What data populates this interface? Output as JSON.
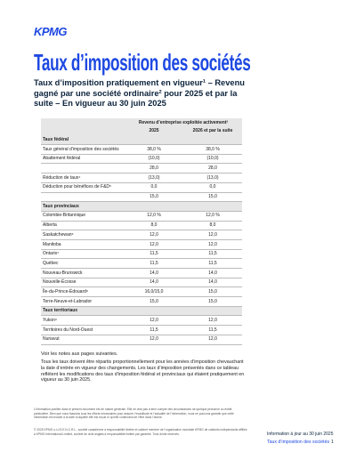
{
  "header": {
    "logo": "KPMG",
    "title": "Taux d’imposition des sociétés",
    "subtitle": "Taux d’imposition pratiquement en vigueur¹ – Revenu gagné par une société ordinaire² pour 2025 et par la suite – En vigueur au 30 juin 2025"
  },
  "table": {
    "group_header": "Revenu d’entreprise exploitée activement³",
    "columns": [
      "2025",
      "2026 et par la suite"
    ],
    "sections": [
      {
        "title": "Taux fédéral",
        "rows": [
          {
            "label": "Taux général d’imposition des sociétés",
            "values": [
              "38,0 %",
              "38,0 %"
            ]
          },
          {
            "label": "Abattement fédéral",
            "values": [
              "(10,0)",
              "(10,0)"
            ]
          },
          {
            "values": [
              "28,0",
              "28,0"
            ]
          },
          {
            "label": "Réduction de taux⁴",
            "values": [
              "(13,0)",
              "(13,0)"
            ]
          },
          {
            "label": "Déduction pour bénéfices de F&D⁵",
            "values": [
              "0,0",
              "0,0"
            ]
          },
          {
            "values": [
              "15,0",
              "15,0"
            ]
          }
        ]
      },
      {
        "title": "Taux provinciaux",
        "rows": [
          {
            "label": "Colombie-Britannique",
            "values": [
              "12,0 %",
              "12,0 %"
            ]
          },
          {
            "label": "Alberta",
            "values": [
              "8,0",
              "8,0"
            ]
          },
          {
            "label": "Saskatchewan⁶",
            "values": [
              "12,0",
              "12,0"
            ]
          },
          {
            "label": "Manitoba",
            "values": [
              "12,0",
              "12,0"
            ]
          },
          {
            "label": "Ontario⁷",
            "values": [
              "11,5",
              "11,5"
            ]
          },
          {
            "label": "Québec",
            "values": [
              "11,5",
              "11,5"
            ]
          },
          {
            "label": "Nouveau-Brunswick",
            "values": [
              "14,0",
              "14,0"
            ]
          },
          {
            "label": "Nouvelle-Écosse",
            "values": [
              "14,0",
              "14,0"
            ]
          },
          {
            "label": "Île-du-Prince-Édouard⁸",
            "values": [
              "16,0/15,0",
              "15,0"
            ]
          },
          {
            "label": "Terre-Neuve-et-Labrador",
            "values": [
              "15,0",
              "15,0"
            ]
          }
        ]
      },
      {
        "title": "Taux territoriaux",
        "rows": [
          {
            "label": "Yukon⁹",
            "values": [
              "12,0",
              "12,0"
            ]
          },
          {
            "label": "Territoires du Nord-Ouest",
            "values": [
              "11,5",
              "11,5"
            ]
          },
          {
            "label": "Nunavut",
            "values": [
              "12,0",
              "12,0"
            ]
          }
        ]
      }
    ]
  },
  "notes": {
    "see_notes": "Voir les notes aux pages suivantes.",
    "paragraph": "Tous les taux doivent être répartis proportionnellement pour les années d’imposition chevauchant la date d’entrée en vigueur des changements. Les taux d’imposition présentés dans ce tableau reflètent les modifications des taux d’imposition fédéral et provinciaux qui étaient pratiquement en vigueur au 30 juin 2025."
  },
  "footer": {
    "disclaimer": "L’information publiée dans le présent document est de nature générale. Elle ne vise pas à tenir compte des circonstances de quelque personne ou entité particulière. Bien que nous fassions tous les efforts nécessaires pour assurer l’exactitude et l’actualité de l’information, nous ne pouvons garantir que cette information est exacte à la date à laquelle elle est reçue ni qu’elle continuera de l’être dans l’avenir.",
    "copyright": "© 2025 KPMG s.r.l./S.E.N.C.R.L., société canadienne à responsabilité limitée et cabinet membre de l’organisation mondiale KPMG de cabinets indépendants affiliés à KPMG International Limited, société de droit anglais à responsabilité limitée par garantie. Tous droits réservés.",
    "date": "Information à jour au 30 juin 2025",
    "doc_title": "Taux d’imposition des sociétés",
    "page": "1"
  }
}
